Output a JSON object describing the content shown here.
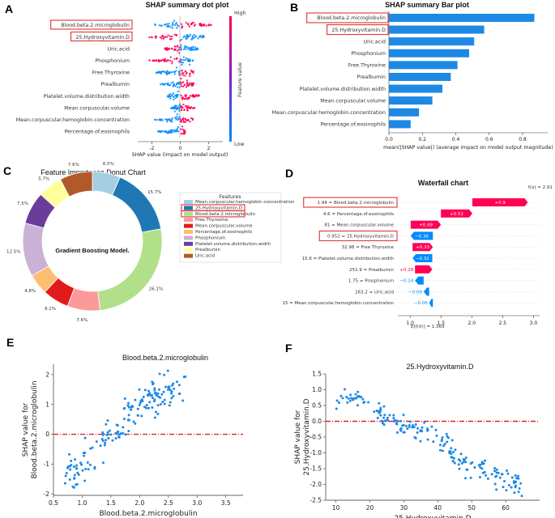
{
  "panels": {
    "A": "A",
    "B": "B",
    "C": "C",
    "D": "D",
    "E": "E",
    "F": "F"
  },
  "colors": {
    "high": "#ff0052",
    "low": "#008bfb",
    "bar": "#1e88e5",
    "red": "#e0332e",
    "scatter": "#1e88e5",
    "refline": "#d62728"
  },
  "chart_data": [
    {
      "id": "A",
      "type": "scatter",
      "title": "SHAP summary dot plot",
      "features": [
        "Blood.beta.2.microglobulin",
        "25.Hydroxyvitamin.D",
        "Uric.acid",
        "Phosphonium",
        "Free.Thyroxine",
        "Prealbumin",
        "Platelet.volume.distribution.width",
        "Mean.corpuscular.volume",
        "Mean.corpuscular.hemoglobin.concentration",
        "Percentage.of.eosinophils"
      ],
      "spread": [
        [
          -1.8,
          2.2
        ],
        [
          -2.2,
          1.7
        ],
        [
          -1.1,
          1.3
        ],
        [
          -2.2,
          0.9
        ],
        [
          -1.7,
          1.1
        ],
        [
          -1.4,
          1.0
        ],
        [
          -0.9,
          1.4
        ],
        [
          -0.7,
          1.0
        ],
        [
          -1.8,
          0.9
        ],
        [
          -1.6,
          0.4
        ]
      ],
      "xticks": [
        "-2",
        "0",
        "2"
      ],
      "xlim": [
        -3,
        3
      ],
      "xlabel": "SHAP value (impact on model output)",
      "colorbar": {
        "high": "High",
        "low": "Low",
        "label": "Feature value"
      }
    },
    {
      "id": "B",
      "type": "bar",
      "title": "SHAP summary Bar plot",
      "categories": [
        "Blood.beta.2.microglobulin",
        "25.Hydroxyvitamin.D",
        "Uric.acid",
        "Phosphonium",
        "Free.Thyroxine",
        "Prealbumin",
        "Platelet.volume.distribution.width",
        "Mean.corpuscular.volume",
        "Mean.corpuscular.hemoglobin.concentration",
        "Percentage.of.eosinophils"
      ],
      "values": [
        0.87,
        0.57,
        0.51,
        0.48,
        0.41,
        0.37,
        0.32,
        0.26,
        0.18,
        0.13
      ],
      "xticks": [
        "0.0",
        "0.2",
        "0.4",
        "0.6",
        "0.8"
      ],
      "xlim": [
        0,
        0.95
      ],
      "xlabel": "mean(|SHAP value|) (average impact on model output magnitude)"
    },
    {
      "id": "C",
      "type": "pie",
      "title": "Feature Importance Donut Chart",
      "center_text": "Gradient Boosting Model.",
      "legend_title": "Features",
      "slices": [
        {
          "label": "Mean.corpuscular.hemoglobin.concentration",
          "value": 6.5,
          "pct": "6.5%",
          "color": "#a6cee3"
        },
        {
          "label": "25.Hydroxyvitamin.D",
          "value": 15.7,
          "pct": "15.7%",
          "color": "#1f78b4"
        },
        {
          "label": "Blood.beta.2.microglobulin",
          "value": 26.1,
          "pct": "26.1%",
          "color": "#b2df8a"
        },
        {
          "label": "Free.Thyroxine",
          "value": 7.6,
          "pct": "7.6%",
          "color": "#fb9a99"
        },
        {
          "label": "Mean.corpuscular.volume",
          "value": 6.1,
          "pct": "6.1%",
          "color": "#e31a1c"
        },
        {
          "label": "Percentage.of.eosinophils",
          "value": 4.8,
          "pct": "4.8%",
          "color": "#fdbf6f"
        },
        {
          "label": "Phosphonium",
          "value": 12.5,
          "pct": "12.5%",
          "color": "#cab2d6"
        },
        {
          "label": "Platelet.volume.distribution.width",
          "value": 7.5,
          "pct": "7.5%",
          "color": "#6a3d9a"
        },
        {
          "label": "Prealbumin",
          "value": 5.7,
          "pct": "5.7%",
          "color": "#ffff99"
        },
        {
          "label": "Uric.acid",
          "value": 7.6,
          "pct": "7.6%",
          "color": "#b15928"
        }
      ]
    },
    {
      "id": "D",
      "type": "bar",
      "title": "Waterfall chart",
      "fx_label": "f(x) = 2.91",
      "efx_label": "E[f(X)] = 1.369",
      "base": 1.369,
      "rows": [
        {
          "label": "1.94 = Blood.beta.2.microglobulin",
          "value": 0.9,
          "text": "+0.9"
        },
        {
          "label": "4.6 = Percentage.of.eosinophils",
          "value": 0.51,
          "text": "+0.51"
        },
        {
          "label": "81 = Mean.corpuscular.volume",
          "value": 0.49,
          "text": "+0.49"
        },
        {
          "label": "0.952 = 25.Hydroxyvitamin.D",
          "value": -0.36,
          "text": "−0.36"
        },
        {
          "label": "32.98 = Free Thyroxine",
          "value": 0.33,
          "text": "+0.33"
        },
        {
          "label": "15.6 = Platelet.volume.distribution.width",
          "value": -0.32,
          "text": "−0.32"
        },
        {
          "label": "251.9 = Prealbumin",
          "value": 0.28,
          "text": "+0.28"
        },
        {
          "label": "1.75 = Prosphonium",
          "value": -0.14,
          "text": "−0.14"
        },
        {
          "label": "263.2 = Uric.acid",
          "value": -0.09,
          "text": "−0.09"
        },
        {
          "label": "15 = Mean.corpuscular.hemoglobin.concentration",
          "value": -0.06,
          "text": "−0.06"
        }
      ],
      "xticks": [
        "1.0",
        "1.5",
        "2.0",
        "2.5",
        "3.0"
      ],
      "xlim": [
        0.8,
        3.1
      ]
    },
    {
      "id": "E",
      "type": "scatter",
      "title": "Blood.beta.2.microglobulin",
      "xlabel": "Blood.beta.2.microglobulin",
      "ylabel": "SHAP value for\nBlood.beta.2.microglobulin",
      "xlim": [
        0.5,
        3.8
      ],
      "ylim": [
        -2.05,
        2.35
      ],
      "xticks": [
        0.5,
        1.0,
        1.5,
        2.0,
        2.5,
        3.0,
        3.5
      ],
      "yticks": [
        -2,
        -1,
        0,
        1,
        2
      ],
      "trend": [
        [
          0.7,
          -1.1
        ],
        [
          0.9,
          -1.3
        ],
        [
          1.1,
          -1.0
        ],
        [
          1.3,
          -0.5
        ],
        [
          1.5,
          -0.1
        ],
        [
          1.7,
          0.3
        ],
        [
          1.9,
          0.95
        ],
        [
          2.1,
          1.2
        ],
        [
          2.4,
          1.35
        ],
        [
          2.8,
          1.6
        ]
      ],
      "noise": 0.3,
      "n": 170,
      "refline": 0
    },
    {
      "id": "F",
      "type": "scatter",
      "title": "25.Hydroxyvitamin.D",
      "xlabel": "25.Hydroxyvitamin.D",
      "ylabel": "SHAP value for\n25.Hydroxyvitamin.D",
      "xlim": [
        7,
        70
      ],
      "ylim": [
        -2.5,
        1.5
      ],
      "xticks": [
        10,
        20,
        30,
        40,
        50,
        60
      ],
      "yticks": [
        -2.5,
        -2.0,
        -1.5,
        -1.0,
        -0.5,
        0.0,
        0.5,
        1.0,
        1.5
      ],
      "trend": [
        [
          10,
          0.55
        ],
        [
          14,
          0.85
        ],
        [
          18,
          0.7
        ],
        [
          22,
          0.35
        ],
        [
          25,
          0.05
        ],
        [
          28,
          -0.15
        ],
        [
          32,
          -0.2
        ],
        [
          36,
          -0.3
        ],
        [
          40,
          -0.6
        ],
        [
          45,
          -1.1
        ],
        [
          50,
          -1.4
        ],
        [
          55,
          -1.6
        ],
        [
          60,
          -1.8
        ],
        [
          65,
          -2.0
        ]
      ],
      "noise": 0.18,
      "n": 190,
      "refline": 0
    }
  ]
}
